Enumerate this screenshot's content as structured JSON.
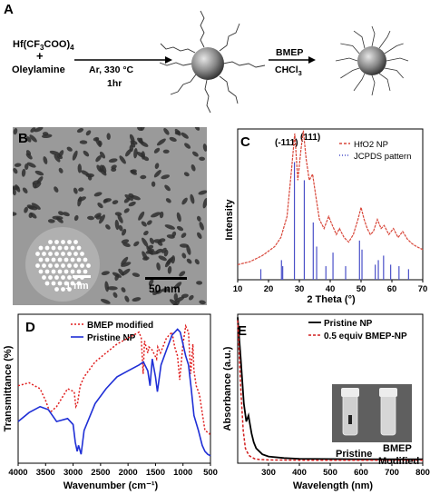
{
  "panel_a": {
    "letter": "A",
    "reagent_line1": "Hf(CF",
    "reagent_sub1": "3",
    "reagent_mid": "COO)",
    "reagent_sub2": "4",
    "plus": "+",
    "reagent_line2": "Oleylamine",
    "conditions_1": "Ar, 330 °C",
    "conditions_2": "1hr",
    "step_reagent": "BMEP",
    "step_solvent": "CHCl",
    "step_solvent_sub": "3"
  },
  "panel_b": {
    "letter": "B",
    "inset_scale": "1 nm",
    "main_scale": "50 nm"
  },
  "panel_c": {
    "letter": "C",
    "peak_labels": [
      "(-111)",
      "(111)"
    ],
    "legend": [
      "HfO2 NP",
      "JCPDS pattern"
    ],
    "colors": {
      "hfo2": "#d8473a",
      "jcpds": "#4a50c8"
    },
    "chart_data": {
      "type": "line",
      "xlabel": "2 Theta (°)",
      "ylabel": "Intensity",
      "xlim": [
        10,
        70
      ],
      "xticks": [
        "10",
        "20",
        "30",
        "40",
        "50",
        "60",
        "70"
      ],
      "series": [
        {
          "name": "HfO2 NP",
          "x": [
            10,
            14,
            18,
            22,
            24,
            26,
            27.5,
            28.5,
            29.5,
            30.5,
            31.3,
            32.2,
            33.2,
            34.3,
            35.3,
            36.5,
            38,
            39.5,
            40.7,
            42,
            43,
            44.5,
            46,
            47.5,
            49,
            50,
            51,
            52,
            53,
            54,
            55.3,
            56.5,
            57.5,
            59,
            60.5,
            62,
            63.5,
            65,
            66.5,
            68,
            70
          ],
          "y": [
            0.1,
            0.12,
            0.16,
            0.22,
            0.28,
            0.42,
            0.74,
            0.97,
            0.66,
            0.86,
            0.99,
            0.8,
            0.66,
            0.7,
            0.56,
            0.4,
            0.34,
            0.42,
            0.36,
            0.3,
            0.34,
            0.28,
            0.25,
            0.3,
            0.4,
            0.48,
            0.4,
            0.34,
            0.3,
            0.32,
            0.4,
            0.34,
            0.36,
            0.3,
            0.34,
            0.28,
            0.32,
            0.27,
            0.24,
            0.22,
            0.2
          ]
        },
        {
          "name": "JCPDS pattern",
          "x": [
            17.5,
            24.2,
            24.6,
            28.4,
            31.6,
            34.5,
            35.6,
            38.6,
            40.9,
            45,
            49.5,
            50.3,
            54.6,
            55.6,
            57.3,
            59.6,
            62.3,
            65.4
          ],
          "y": [
            0.07,
            0.13,
            0.09,
            0.78,
            0.66,
            0.38,
            0.22,
            0.09,
            0.18,
            0.09,
            0.26,
            0.2,
            0.1,
            0.13,
            0.16,
            0.1,
            0.09,
            0.07
          ]
        }
      ]
    }
  },
  "panel_d": {
    "letter": "D",
    "legend": [
      "BMEP modified",
      "Pristine NP"
    ],
    "colors": {
      "bmep": "#e01e1e",
      "pristine": "#1f2fd6"
    },
    "chart_data": {
      "type": "line",
      "xlabel": "Wavenumber (cm⁻¹)",
      "ylabel": "Transmittance (%)",
      "xlim": [
        4000,
        500
      ],
      "xticks": [
        "4000",
        "3500",
        "3000",
        "2500",
        "2000",
        "1500",
        "1000",
        "500"
      ],
      "series": [
        {
          "name": "BMEP modified",
          "x": [
            4000,
            3800,
            3600,
            3500,
            3420,
            3300,
            3100,
            2980,
            2950,
            2920,
            2870,
            2800,
            2600,
            2400,
            2200,
            2000,
            1900,
            1800,
            1760,
            1725,
            1700,
            1640,
            1620,
            1560,
            1480,
            1460,
            1410,
            1300,
            1200,
            1150,
            1100,
            1060,
            1000,
            950,
            900,
            860,
            820,
            800,
            760,
            700,
            600,
            520,
            500
          ],
          "y": [
            0.52,
            0.54,
            0.5,
            0.42,
            0.34,
            0.38,
            0.5,
            0.48,
            0.38,
            0.4,
            0.52,
            0.58,
            0.68,
            0.74,
            0.8,
            0.84,
            0.86,
            0.88,
            0.84,
            0.6,
            0.82,
            0.74,
            0.78,
            0.76,
            0.7,
            0.78,
            0.74,
            0.84,
            0.88,
            0.78,
            0.72,
            0.56,
            0.8,
            0.92,
            0.88,
            0.6,
            0.8,
            0.62,
            0.52,
            0.46,
            0.22,
            0.2,
            0.18
          ]
        },
        {
          "name": "Pristine NP",
          "x": [
            4000,
            3800,
            3600,
            3450,
            3300,
            3100,
            3000,
            2960,
            2925,
            2900,
            2855,
            2800,
            2600,
            2400,
            2200,
            2000,
            1800,
            1720,
            1640,
            1600,
            1560,
            1500,
            1465,
            1400,
            1300,
            1200,
            1100,
            1050,
            1000,
            950,
            900,
            850,
            800,
            720,
            650,
            600,
            550,
            500
          ],
          "y": [
            0.28,
            0.34,
            0.38,
            0.36,
            0.28,
            0.3,
            0.26,
            0.14,
            0.08,
            0.12,
            0.06,
            0.22,
            0.4,
            0.5,
            0.58,
            0.62,
            0.66,
            0.68,
            0.62,
            0.52,
            0.7,
            0.58,
            0.48,
            0.66,
            0.76,
            0.86,
            0.9,
            0.88,
            0.8,
            0.72,
            0.66,
            0.5,
            0.32,
            0.22,
            0.12,
            0.08,
            0.06,
            0.05
          ]
        }
      ]
    }
  },
  "panel_e": {
    "letter": "E",
    "legend": [
      "Pristine NP",
      "0.5 equiv BMEP-NP"
    ],
    "colors": {
      "pristine": "#000000",
      "bmep": "#d11e1e"
    },
    "photo_labels": [
      "Pristine",
      "BMEP",
      "Modified"
    ],
    "chart_data": {
      "type": "line",
      "xlabel": "Wavelength (nm)",
      "ylabel": "Absorbance (a.u.)",
      "xlim": [
        200,
        800
      ],
      "xticks": [
        "300",
        "400",
        "500",
        "600",
        "700",
        "800"
      ],
      "series": [
        {
          "name": "Pristine NP",
          "x": [
            200,
            210,
            220,
            228,
            235,
            240,
            245,
            252,
            260,
            280,
            300,
            350,
            400,
            500,
            600,
            800
          ],
          "y": [
            0.98,
            0.7,
            0.4,
            0.28,
            0.32,
            0.26,
            0.2,
            0.14,
            0.1,
            0.06,
            0.045,
            0.035,
            0.03,
            0.028,
            0.027,
            0.026
          ]
        },
        {
          "name": "0.5 equiv BMEP-NP",
          "x": [
            200,
            210,
            218,
            225,
            232,
            238,
            245,
            255,
            270,
            300,
            400,
            800
          ],
          "y": [
            0.96,
            0.5,
            0.22,
            0.1,
            0.07,
            0.05,
            0.04,
            0.03,
            0.025,
            0.022,
            0.02,
            0.02
          ]
        }
      ]
    }
  }
}
